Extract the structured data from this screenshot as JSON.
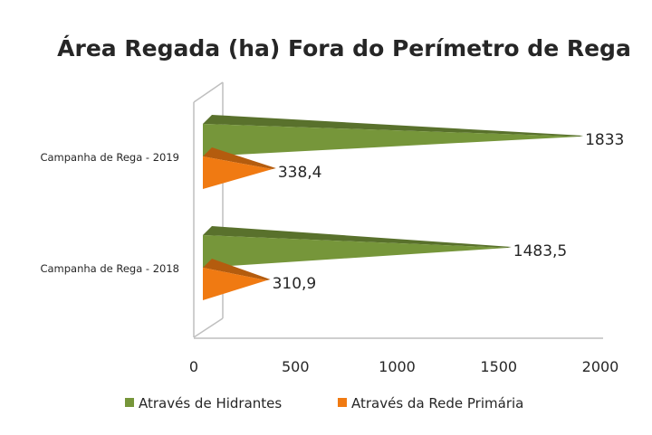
{
  "chart_data": {
    "type": "bar",
    "orientation": "horizontal",
    "title": "Área Regada (ha) Fora do Perímetro de Rega",
    "categories": [
      "Campanha de Rega - 2019",
      "Campanha de Rega - 2018"
    ],
    "series": [
      {
        "name": "Através de Hidrantes",
        "values": [
          1833,
          1483.5
        ],
        "labels": [
          "1833",
          "1483,5"
        ],
        "color": "#76963A"
      },
      {
        "name": "Através da Rede Primária",
        "values": [
          338.4,
          310.9
        ],
        "labels": [
          "338,4",
          "310,9"
        ],
        "color": "#F07A12"
      }
    ],
    "xlim": [
      0,
      2000
    ],
    "xticks": [
      0,
      500,
      1000,
      1500,
      2000
    ],
    "xtick_labels": [
      "0",
      "500",
      "1000",
      "1500",
      "2000"
    ],
    "grid": false,
    "legend": "bottom"
  }
}
